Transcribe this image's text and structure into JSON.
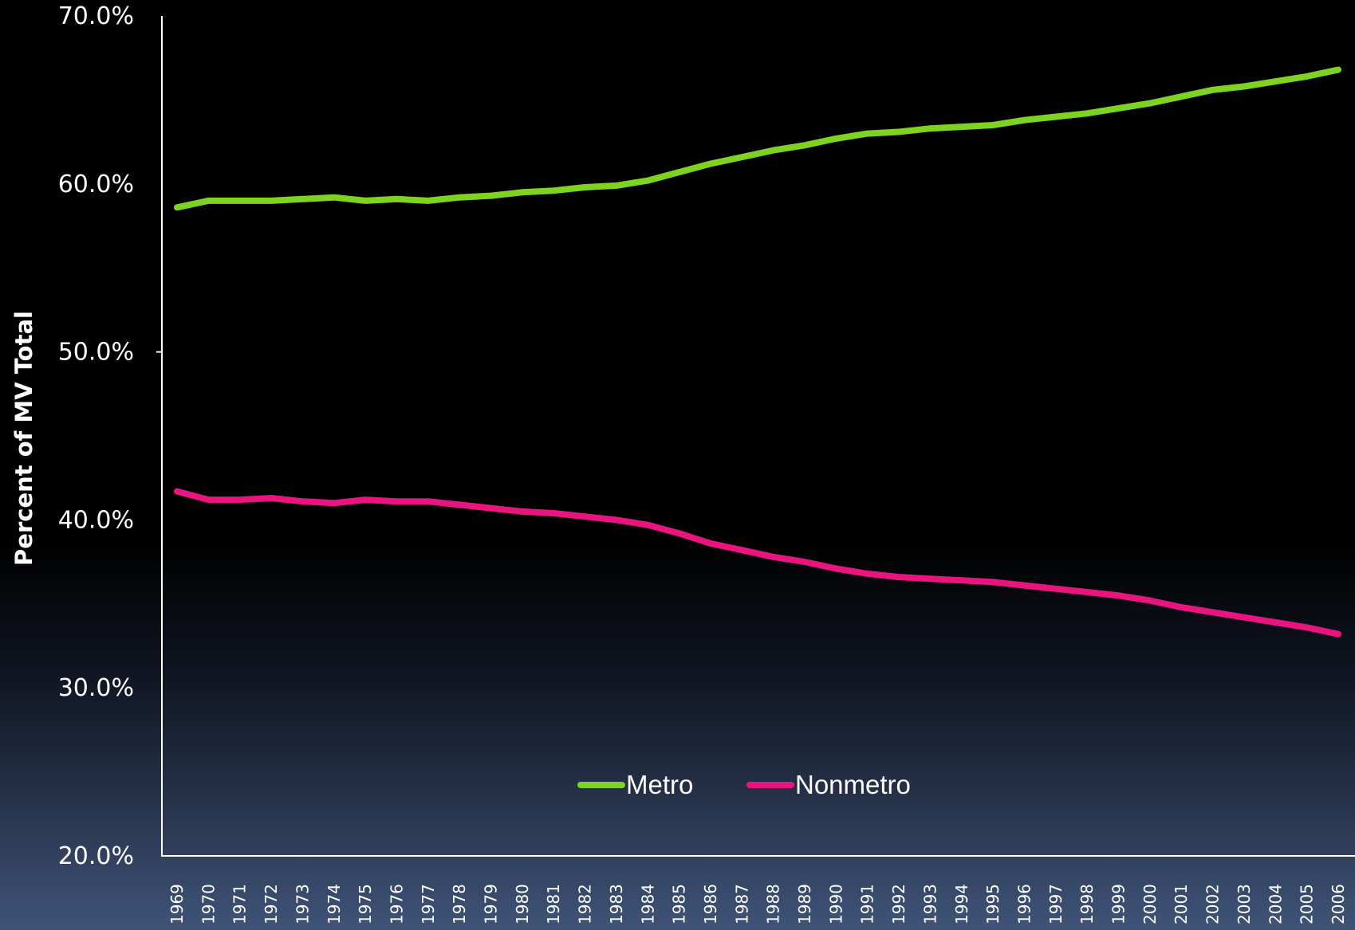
{
  "chart_data": {
    "type": "line",
    "title": "",
    "xlabel": "",
    "ylabel": "Percent of MV Total",
    "ylim": [
      20,
      70
    ],
    "yticks": [
      "20.0%",
      "30.0%",
      "40.0%",
      "50.0%",
      "60.0%",
      "70.0%"
    ],
    "categories": [
      "1969",
      "1970",
      "1971",
      "1972",
      "1973",
      "1974",
      "1975",
      "1976",
      "1977",
      "1978",
      "1979",
      "1980",
      "1981",
      "1982",
      "1983",
      "1984",
      "1985",
      "1986",
      "1987",
      "1988",
      "1989",
      "1990",
      "1991",
      "1992",
      "1993",
      "1994",
      "1995",
      "1996",
      "1997",
      "1998",
      "1999",
      "2000",
      "2001",
      "2002",
      "2003",
      "2004",
      "2005",
      "2006"
    ],
    "series": [
      {
        "name": "Metro",
        "color": "#7ed321",
        "values": [
          58.6,
          59.0,
          59.0,
          59.0,
          59.1,
          59.2,
          59.0,
          59.1,
          59.0,
          59.2,
          59.3,
          59.5,
          59.6,
          59.8,
          59.9,
          60.2,
          60.7,
          61.2,
          61.6,
          62.0,
          62.3,
          62.7,
          63.0,
          63.1,
          63.3,
          63.4,
          63.5,
          63.8,
          64.0,
          64.2,
          64.5,
          64.8,
          65.2,
          65.6,
          65.8,
          66.1,
          66.4,
          66.8
        ]
      },
      {
        "name": "Nonmetro",
        "color": "#e8157e",
        "values": [
          41.7,
          41.2,
          41.2,
          41.3,
          41.1,
          41.0,
          41.2,
          41.1,
          41.1,
          40.9,
          40.7,
          40.5,
          40.4,
          40.2,
          40.0,
          39.7,
          39.2,
          38.6,
          38.2,
          37.8,
          37.5,
          37.1,
          36.8,
          36.6,
          36.5,
          36.4,
          36.3,
          36.1,
          35.9,
          35.7,
          35.5,
          35.2,
          34.8,
          34.5,
          34.2,
          33.9,
          33.6,
          33.2
        ]
      }
    ],
    "legend": {
      "position": "bottom-center"
    },
    "grid": false
  }
}
